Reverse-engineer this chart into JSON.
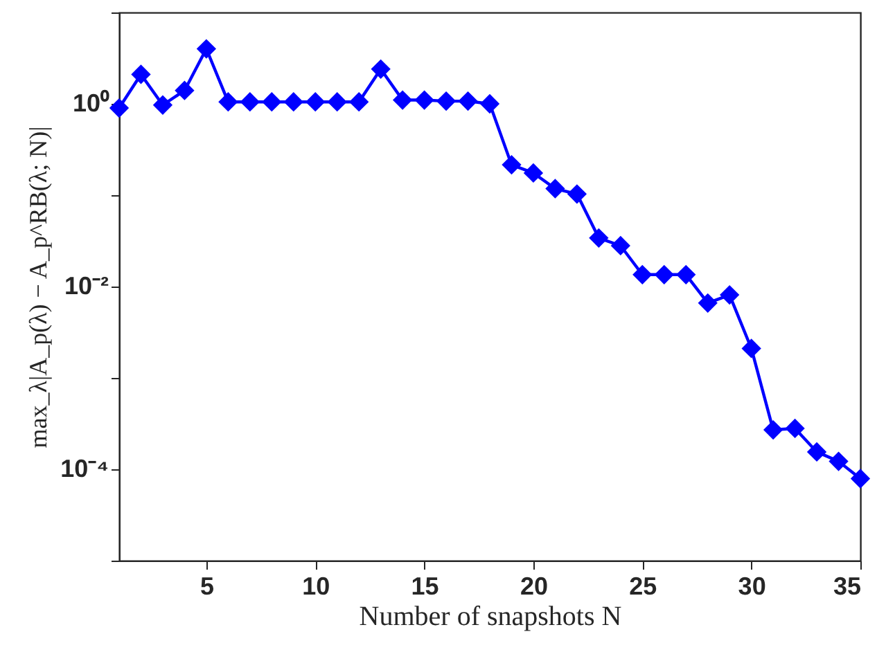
{
  "chart_data": {
    "type": "line",
    "xlabel": "Number of snapshots N",
    "ylabel": "max_λ|A_p(λ) − A_p^RB(λ; N)|",
    "x": [
      1,
      2,
      3,
      4,
      5,
      6,
      7,
      8,
      9,
      10,
      11,
      12,
      13,
      14,
      15,
      16,
      17,
      18,
      19,
      20,
      21,
      22,
      23,
      24,
      25,
      26,
      27,
      28,
      29,
      30,
      31,
      32,
      33,
      34,
      35
    ],
    "series": [
      {
        "color": "#0000ff",
        "values": [
          0.9,
          2.1,
          0.97,
          1.4,
          4.0,
          1.05,
          1.05,
          1.05,
          1.05,
          1.05,
          1.05,
          1.05,
          2.4,
          1.1,
          1.1,
          1.07,
          1.07,
          1.0,
          0.215,
          0.175,
          0.118,
          0.103,
          0.034,
          0.028,
          0.0135,
          0.0135,
          0.0135,
          0.0066,
          0.0081,
          0.0021,
          0.00027,
          0.00028,
          0.000155,
          0.000122,
          7.9e-05
        ]
      }
    ],
    "xlim": [
      1,
      35
    ],
    "xticks": [
      5,
      10,
      15,
      20,
      25,
      30,
      35
    ],
    "ylim": [
      1e-05,
      10
    ],
    "log": true,
    "yticks": [
      {
        "value": 1e-05,
        "label": null
      },
      {
        "value": 0.0001,
        "label": "10⁻⁴"
      },
      {
        "value": 0.001,
        "label": null
      },
      {
        "value": 0.01,
        "label": "10⁻²"
      },
      {
        "value": 0.1,
        "label": null
      },
      {
        "value": 1,
        "label": "10⁰"
      },
      {
        "value": 10,
        "label": null
      }
    ],
    "marker": "diamond",
    "line_style": "solid",
    "grid": false
  }
}
